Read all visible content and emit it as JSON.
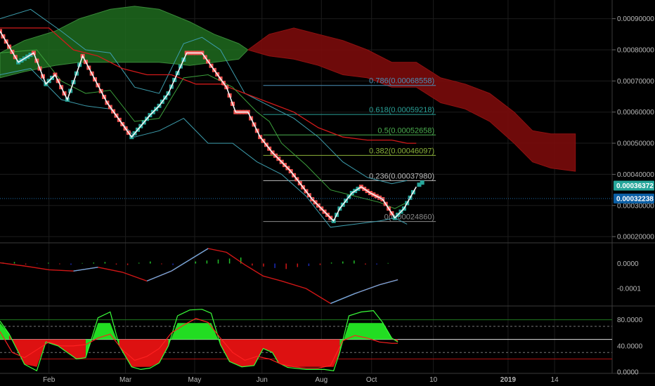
{
  "chart_data": {
    "type": "line",
    "pair_type": "renko price chart with Ichimoku cloud, Bollinger bands and Fibonacci retracement",
    "x_ticks": [
      {
        "label": "Feb",
        "t": 0.08
      },
      {
        "label": "Mar",
        "t": 0.205
      },
      {
        "label": "May",
        "t": 0.318
      },
      {
        "label": "Jun",
        "t": 0.428
      },
      {
        "label": "Aug",
        "t": 0.525
      },
      {
        "label": "Oct",
        "t": 0.607
      },
      {
        "label": "10",
        "t": 0.708
      },
      {
        "label": "2019",
        "t": 0.83
      },
      {
        "label": "14",
        "t": 0.906
      }
    ],
    "price_axis": {
      "range": [
        0.00018,
        0.00096
      ],
      "ticks": [
        "0.00020000",
        "0.00030000",
        "0.00040000",
        "0.00050000",
        "0.00060000",
        "0.00070000",
        "0.00080000",
        "0.00090000"
      ],
      "tick_values": [
        0.0002,
        0.0003,
        0.0004,
        0.0005,
        0.0006,
        0.0007,
        0.0008,
        0.0009
      ],
      "last_price": {
        "label": "0.00036372",
        "value": 0.00036372,
        "color": "#26a69a"
      },
      "current_line": {
        "label": "0.00032238",
        "value": 0.00032238,
        "color": "#0b5fa5"
      }
    },
    "fib_levels": [
      {
        "ratio": "0.786",
        "value": 0.00068558,
        "label": "0.786(0.00068558)",
        "color": "#4a90b8"
      },
      {
        "ratio": "0.618",
        "value": 0.00059218,
        "label": "0.618(0.00059218)",
        "color": "#2aa198"
      },
      {
        "ratio": "0.5",
        "value": 0.00052658,
        "label": "0.5(0.00052658)",
        "color": "#4caf50"
      },
      {
        "ratio": "0.382",
        "value": 0.00046097,
        "label": "0.382(0.00046097)",
        "color": "#8bb33a"
      },
      {
        "ratio": "0.236",
        "value": 0.0003798,
        "label": "0.236(0.00037980)",
        "color": "#bdbdbd"
      },
      {
        "ratio": "0",
        "value": 0.0002486,
        "label": "0(0.00024860)",
        "color": "#8a8a8a"
      }
    ],
    "renko_path": [
      [
        0.0,
        0.00086
      ],
      [
        0.03,
        0.00076
      ],
      [
        0.055,
        0.00079
      ],
      [
        0.075,
        0.00069
      ],
      [
        0.09,
        0.00072
      ],
      [
        0.11,
        0.00064
      ],
      [
        0.135,
        0.00078
      ],
      [
        0.175,
        0.00063
      ],
      [
        0.215,
        0.00052
      ],
      [
        0.245,
        0.00059
      ],
      [
        0.26,
        0.00062
      ],
      [
        0.275,
        0.00066
      ],
      [
        0.305,
        0.00079
      ],
      [
        0.33,
        0.00079
      ],
      [
        0.37,
        0.00068
      ],
      [
        0.385,
        0.0006
      ],
      [
        0.405,
        0.0006
      ],
      [
        0.425,
        0.00052
      ],
      [
        0.445,
        0.00047
      ],
      [
        0.475,
        0.00041
      ],
      [
        0.51,
        0.00032
      ],
      [
        0.545,
        0.00025
      ],
      [
        0.555,
        0.00029
      ],
      [
        0.575,
        0.00034
      ],
      [
        0.59,
        0.00036
      ],
      [
        0.605,
        0.00034
      ],
      [
        0.625,
        0.00032
      ],
      [
        0.645,
        0.00026
      ],
      [
        0.66,
        0.00029
      ],
      [
        0.68,
        0.00036
      ]
    ],
    "bollinger_upper": [
      [
        0.0,
        0.0009
      ],
      [
        0.05,
        0.00093
      ],
      [
        0.1,
        0.00086
      ],
      [
        0.14,
        0.0008
      ],
      [
        0.18,
        0.00079
      ],
      [
        0.22,
        0.00068
      ],
      [
        0.26,
        0.00066
      ],
      [
        0.3,
        0.00082
      ],
      [
        0.33,
        0.00084
      ],
      [
        0.36,
        0.0008
      ],
      [
        0.4,
        0.00066
      ],
      [
        0.44,
        0.00062
      ],
      [
        0.48,
        0.00058
      ],
      [
        0.52,
        0.00052
      ],
      [
        0.56,
        0.00044
      ],
      [
        0.6,
        0.00039
      ],
      [
        0.64,
        0.00037
      ],
      [
        0.665,
        0.00038
      ]
    ],
    "bollinger_lower": [
      [
        0.0,
        0.00072
      ],
      [
        0.05,
        0.00074
      ],
      [
        0.1,
        0.00064
      ],
      [
        0.14,
        0.00062
      ],
      [
        0.18,
        0.00061
      ],
      [
        0.22,
        0.00052
      ],
      [
        0.26,
        0.00054
      ],
      [
        0.3,
        0.00058
      ],
      [
        0.34,
        0.0005
      ],
      [
        0.38,
        0.0005
      ],
      [
        0.42,
        0.00044
      ],
      [
        0.46,
        0.0004
      ],
      [
        0.5,
        0.00033
      ],
      [
        0.54,
        0.00023
      ],
      [
        0.58,
        0.00024
      ],
      [
        0.62,
        0.00025
      ],
      [
        0.645,
        0.00026
      ],
      [
        0.665,
        0.00024
      ]
    ],
    "kijun_line": [
      [
        0.0,
        0.00087
      ],
      [
        0.08,
        0.00087
      ],
      [
        0.12,
        0.0008
      ],
      [
        0.16,
        0.00078
      ],
      [
        0.2,
        0.00074
      ],
      [
        0.24,
        0.00072
      ],
      [
        0.28,
        0.00072
      ],
      [
        0.32,
        0.00069
      ],
      [
        0.36,
        0.00069
      ],
      [
        0.4,
        0.00066
      ],
      [
        0.44,
        0.00063
      ],
      [
        0.48,
        0.0006
      ],
      [
        0.52,
        0.00055
      ],
      [
        0.56,
        0.00052
      ],
      [
        0.6,
        0.00051
      ],
      [
        0.64,
        0.00051
      ],
      [
        0.665,
        0.0005
      ],
      [
        0.68,
        0.0005
      ]
    ],
    "tenkan_line": [
      [
        0.0,
        0.00079
      ],
      [
        0.06,
        0.0008
      ],
      [
        0.1,
        0.0007
      ],
      [
        0.14,
        0.00066
      ],
      [
        0.18,
        0.00067
      ],
      [
        0.22,
        0.00057
      ],
      [
        0.26,
        0.00058
      ],
      [
        0.3,
        0.00071
      ],
      [
        0.34,
        0.00072
      ],
      [
        0.38,
        0.00068
      ],
      [
        0.42,
        0.0006
      ],
      [
        0.44,
        0.00057
      ],
      [
        0.46,
        0.0005
      ],
      [
        0.5,
        0.00043
      ],
      [
        0.54,
        0.00035
      ],
      [
        0.58,
        0.00033
      ],
      [
        0.62,
        0.00031
      ],
      [
        0.645,
        0.00029
      ],
      [
        0.665,
        0.00031
      ]
    ],
    "cloud_green": {
      "upper": [
        [
          0.0,
          0.00079
        ],
        [
          0.04,
          0.00083
        ],
        [
          0.09,
          0.00086
        ],
        [
          0.13,
          0.0009
        ],
        [
          0.18,
          0.00093
        ],
        [
          0.22,
          0.00094
        ],
        [
          0.26,
          0.00093
        ],
        [
          0.31,
          0.00089
        ],
        [
          0.35,
          0.00085
        ],
        [
          0.39,
          0.00082
        ],
        [
          0.405,
          0.0008
        ]
      ],
      "lower": [
        [
          0.0,
          0.00071
        ],
        [
          0.04,
          0.00073
        ],
        [
          0.09,
          0.00075
        ],
        [
          0.13,
          0.00076
        ],
        [
          0.18,
          0.00076
        ],
        [
          0.22,
          0.00076
        ],
        [
          0.26,
          0.00076
        ],
        [
          0.31,
          0.00075
        ],
        [
          0.35,
          0.00076
        ],
        [
          0.39,
          0.00077
        ],
        [
          0.405,
          0.0008
        ]
      ]
    },
    "cloud_red": {
      "upper": [
        [
          0.405,
          0.0008
        ],
        [
          0.44,
          0.00085
        ],
        [
          0.48,
          0.00087
        ],
        [
          0.52,
          0.00085
        ],
        [
          0.56,
          0.00083
        ],
        [
          0.6,
          0.0008
        ],
        [
          0.64,
          0.00076
        ],
        [
          0.68,
          0.00076
        ],
        [
          0.72,
          0.00071
        ],
        [
          0.76,
          0.00069
        ],
        [
          0.8,
          0.00066
        ],
        [
          0.84,
          0.0006
        ],
        [
          0.87,
          0.00054
        ],
        [
          0.9,
          0.00053
        ],
        [
          0.94,
          0.00053
        ]
      ],
      "lower": [
        [
          0.405,
          0.0008
        ],
        [
          0.44,
          0.00078
        ],
        [
          0.48,
          0.00077
        ],
        [
          0.52,
          0.00075
        ],
        [
          0.56,
          0.00072
        ],
        [
          0.6,
          0.00071
        ],
        [
          0.64,
          0.00068
        ],
        [
          0.68,
          0.00068
        ],
        [
          0.72,
          0.00063
        ],
        [
          0.76,
          0.00061
        ],
        [
          0.8,
          0.00057
        ],
        [
          0.84,
          0.0005
        ],
        [
          0.87,
          0.00044
        ],
        [
          0.9,
          0.00042
        ],
        [
          0.94,
          0.00041
        ]
      ]
    },
    "macd_panel": {
      "range": [
        -0.00017,
        8e-05
      ],
      "ticks": [
        "0.0000",
        "-0.0001"
      ],
      "tick_values": [
        0.0,
        -0.0001
      ],
      "macd_line": [
        [
          0.0,
          3e-06
        ],
        [
          0.04,
          -1e-05
        ],
        [
          0.08,
          -2.5e-05
        ],
        [
          0.12,
          -3e-05
        ],
        [
          0.16,
          -1.5e-05
        ],
        [
          0.2,
          -3.5e-05
        ],
        [
          0.24,
          -7e-05
        ],
        [
          0.28,
          -3e-05
        ],
        [
          0.31,
          1.5e-05
        ],
        [
          0.34,
          6e-05
        ],
        [
          0.37,
          4.5e-05
        ],
        [
          0.4,
          -5e-06
        ],
        [
          0.43,
          -5e-05
        ],
        [
          0.46,
          -7e-05
        ],
        [
          0.5,
          -0.0001
        ],
        [
          0.54,
          -0.00016
        ],
        [
          0.58,
          -0.00012
        ],
        [
          0.62,
          -8.5e-05
        ],
        [
          0.65,
          -6.5e-05
        ]
      ],
      "histogram": [
        4e-06,
        6e-06,
        -4e-06,
        -2e-06,
        3e-06,
        -3e-06,
        -5e-06,
        2e-06,
        4e-06,
        6e-06,
        -4e-06,
        -6e-06,
        3e-06,
        8e-06,
        -3e-06,
        -6e-06,
        4e-06,
        8e-06,
        1.2e-05,
        1.6e-05,
        2e-05,
        2.4e-05,
        -8e-06,
        -1.2e-05,
        -1.8e-05,
        -2.2e-05,
        -1.4e-05,
        -1e-05,
        -6e-06,
        4e-06,
        8e-06,
        1.2e-05,
        -4e-06,
        -4e-06,
        2e-06
      ]
    },
    "rsi_panel": {
      "range": [
        -2,
        100
      ],
      "ticks": [
        "80.0000",
        "40.0000",
        "0.0000"
      ],
      "tick_values": [
        80,
        40,
        0
      ],
      "levels": [
        80,
        70,
        50,
        30,
        20
      ],
      "stoch_line": [
        [
          0.0,
          78
        ],
        [
          0.015,
          58
        ],
        [
          0.04,
          12
        ],
        [
          0.06,
          2
        ],
        [
          0.075,
          46
        ],
        [
          0.095,
          40
        ],
        [
          0.11,
          30
        ],
        [
          0.125,
          20
        ],
        [
          0.14,
          22
        ],
        [
          0.16,
          83
        ],
        [
          0.18,
          92
        ],
        [
          0.195,
          40
        ],
        [
          0.215,
          8
        ],
        [
          0.23,
          4
        ],
        [
          0.245,
          6
        ],
        [
          0.26,
          14
        ],
        [
          0.275,
          40
        ],
        [
          0.29,
          86
        ],
        [
          0.31,
          95
        ],
        [
          0.33,
          96
        ],
        [
          0.345,
          90
        ],
        [
          0.36,
          42
        ],
        [
          0.375,
          16
        ],
        [
          0.395,
          8
        ],
        [
          0.415,
          10
        ],
        [
          0.43,
          36
        ],
        [
          0.445,
          30
        ],
        [
          0.455,
          14
        ],
        [
          0.47,
          7
        ],
        [
          0.5,
          4
        ],
        [
          0.53,
          4
        ],
        [
          0.545,
          2
        ],
        [
          0.555,
          30
        ],
        [
          0.57,
          86
        ],
        [
          0.59,
          92
        ],
        [
          0.61,
          94
        ],
        [
          0.625,
          76
        ],
        [
          0.64,
          52
        ],
        [
          0.65,
          46
        ]
      ],
      "rsi_line": [
        [
          0.0,
          62
        ],
        [
          0.02,
          30
        ],
        [
          0.04,
          22
        ],
        [
          0.06,
          34
        ],
        [
          0.08,
          46
        ],
        [
          0.1,
          40
        ],
        [
          0.12,
          40
        ],
        [
          0.14,
          42
        ],
        [
          0.16,
          52
        ],
        [
          0.18,
          58
        ],
        [
          0.2,
          34
        ],
        [
          0.22,
          18
        ],
        [
          0.24,
          24
        ],
        [
          0.26,
          36
        ],
        [
          0.28,
          60
        ],
        [
          0.3,
          72
        ],
        [
          0.32,
          82
        ],
        [
          0.34,
          76
        ],
        [
          0.36,
          52
        ],
        [
          0.38,
          30
        ],
        [
          0.4,
          18
        ],
        [
          0.42,
          24
        ],
        [
          0.44,
          20
        ],
        [
          0.46,
          12
        ],
        [
          0.48,
          8
        ],
        [
          0.5,
          6
        ],
        [
          0.52,
          6
        ],
        [
          0.54,
          10
        ],
        [
          0.56,
          48
        ],
        [
          0.58,
          56
        ],
        [
          0.6,
          52
        ],
        [
          0.62,
          46
        ],
        [
          0.64,
          44
        ],
        [
          0.65,
          44
        ]
      ]
    }
  }
}
